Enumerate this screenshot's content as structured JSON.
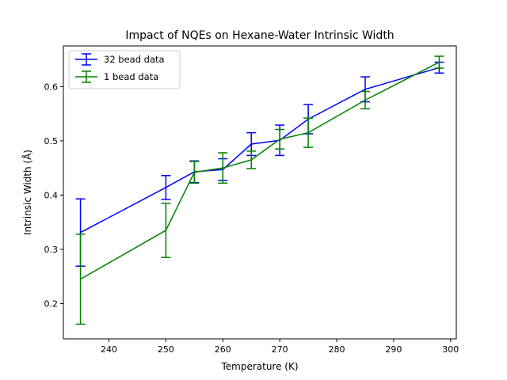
{
  "chart_data": {
    "type": "line",
    "title": "Impact of NQEs on Hexane-Water Intrinsic Width",
    "xlabel": "Temperature (K)",
    "ylabel": "Intrinsic Width (Å)",
    "xlim": [
      232,
      301
    ],
    "ylim": [
      0.135,
      0.675
    ],
    "xticks": [
      240,
      250,
      260,
      270,
      280,
      290,
      300
    ],
    "yticks": [
      0.2,
      0.3,
      0.4,
      0.5,
      0.6
    ],
    "legend_position": "top-left",
    "series": [
      {
        "name": "32 bead data",
        "color": "#0000ff",
        "x": [
          235,
          250,
          255,
          260,
          265,
          270,
          275,
          285,
          298
        ],
        "y": [
          0.331,
          0.414,
          0.443,
          0.447,
          0.494,
          0.501,
          0.54,
          0.595,
          0.635
        ],
        "err": [
          0.062,
          0.022,
          0.02,
          0.02,
          0.021,
          0.028,
          0.027,
          0.023,
          0.01
        ]
      },
      {
        "name": "1 bead data",
        "color": "#008000",
        "x": [
          235,
          250,
          255,
          260,
          265,
          270,
          275,
          285,
          298
        ],
        "y": [
          0.245,
          0.335,
          0.442,
          0.45,
          0.465,
          0.503,
          0.515,
          0.575,
          0.645
        ],
        "err": [
          0.083,
          0.05,
          0.02,
          0.028,
          0.016,
          0.018,
          0.027,
          0.016,
          0.011
        ]
      }
    ]
  }
}
